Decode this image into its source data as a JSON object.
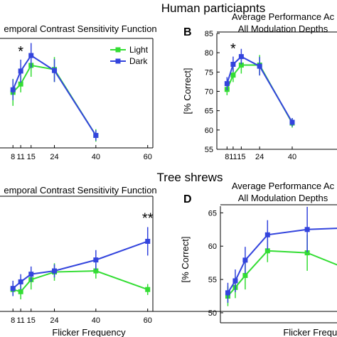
{
  "figure": {
    "row_titles": [
      "Human particiapnts",
      "Tree shrews"
    ],
    "xlabel": "Flicker Frequency"
  },
  "chart_data": [
    {
      "type": "line",
      "panel": "A",
      "panel_label": "",
      "title_lines": [
        "emporal Contrast Sensitivity Function"
      ],
      "ylabel": "",
      "x": [
        8,
        11,
        15,
        24,
        40,
        60
      ],
      "xticks": [
        "8",
        "11",
        "15",
        "24",
        "40",
        "60"
      ],
      "xlim": [
        3,
        62
      ],
      "ylim": [
        0,
        1
      ],
      "yticks": [],
      "show_xlabel": false,
      "legend": "top-right",
      "series": [
        {
          "name": "Light",
          "color": "#33dd33",
          "points": [
            [
              8,
              0.535
            ],
            [
              11,
              0.615
            ],
            [
              15,
              0.795
            ],
            [
              24,
              0.755
            ],
            [
              40,
              0.12
            ]
          ],
          "errors": [
            0.13,
            0.08,
            0.11,
            0.12,
            0.06
          ]
        },
        {
          "name": "Dark",
          "color": "#3344dd",
          "points": [
            [
              8,
              0.56
            ],
            [
              11,
              0.74
            ],
            [
              15,
              0.89
            ],
            [
              24,
              0.745
            ],
            [
              40,
              0.12
            ]
          ],
          "errors": [
            0.1,
            0.11,
            0.12,
            0.11,
            0.05
          ]
        }
      ],
      "annotations": [
        {
          "text": "*",
          "x": 11,
          "y": 0.94
        }
      ]
    },
    {
      "type": "line",
      "panel": "B",
      "panel_label": "B",
      "title_lines": [
        "Average Performance Ac",
        "All Modulation Depths"
      ],
      "ylabel": "[% Correct]",
      "x": [
        8,
        11,
        15,
        24,
        40
      ],
      "xticks": [
        "8",
        "11",
        "15",
        "24",
        "40"
      ],
      "xlim": [
        3,
        62
      ],
      "ylim": [
        55,
        85
      ],
      "yticks": [
        55,
        60,
        65,
        70,
        75,
        80,
        85
      ],
      "show_xlabel": false,
      "legend": "",
      "series": [
        {
          "name": "Light",
          "color": "#33dd33",
          "points": [
            [
              8,
              70.5
            ],
            [
              11,
              74.2
            ],
            [
              15,
              76.8
            ],
            [
              24,
              76.8
            ],
            [
              40,
              61.8
            ]
          ],
          "errors": [
            1.5,
            1.8,
            2.2,
            2.6,
            1.2
          ]
        },
        {
          "name": "Dark",
          "color": "#3344dd",
          "points": [
            [
              8,
              72.0
            ],
            [
              11,
              77.0
            ],
            [
              15,
              79.0
            ],
            [
              24,
              76.5
            ],
            [
              40,
              62.0
            ]
          ],
          "errors": [
            1.7,
            2.0,
            2.0,
            2.4,
            1.1
          ]
        }
      ],
      "annotations": [
        {
          "text": "*",
          "x": 11,
          "y": 81.3
        }
      ]
    },
    {
      "type": "line",
      "panel": "C",
      "panel_label": "",
      "title_lines": [
        "emporal Contrast Sensitivity Function"
      ],
      "ylabel": "",
      "x": [
        8,
        11,
        15,
        24,
        40,
        60
      ],
      "xticks": [
        "8",
        "11",
        "15",
        "24",
        "40",
        "60"
      ],
      "xlim": [
        3,
        62
      ],
      "ylim": [
        0,
        1
      ],
      "yticks": [],
      "show_xlabel": true,
      "legend": "",
      "series": [
        {
          "name": "Light",
          "color": "#33dd33",
          "points": [
            [
              8,
              0.2
            ],
            [
              11,
              0.18
            ],
            [
              15,
              0.29
            ],
            [
              24,
              0.36
            ],
            [
              40,
              0.37
            ],
            [
              60,
              0.2
            ]
          ],
          "errors": [
            0.06,
            0.07,
            0.09,
            0.08,
            0.07,
            0.05
          ]
        },
        {
          "name": "Dark",
          "color": "#3344dd",
          "points": [
            [
              8,
              0.21
            ],
            [
              11,
              0.27
            ],
            [
              15,
              0.34
            ],
            [
              24,
              0.37
            ],
            [
              40,
              0.47
            ],
            [
              60,
              0.64
            ]
          ],
          "errors": [
            0.07,
            0.07,
            0.07,
            0.06,
            0.09,
            0.13
          ]
        }
      ],
      "annotations": [
        {
          "text": "**",
          "x": 60,
          "y": 0.86
        }
      ]
    },
    {
      "type": "line",
      "panel": "D",
      "panel_label": "D",
      "title_lines": [
        "Average Performance Ac",
        "All Modulation Depths"
      ],
      "ylabel": "[% Correct]",
      "x": [
        8,
        11,
        15,
        24,
        40,
        60
      ],
      "xticks": [],
      "xlim": [
        5,
        52
      ],
      "ylim": [
        48.5,
        66
      ],
      "yticks": [
        50,
        55,
        60,
        65
      ],
      "show_xlabel": true,
      "legend": "",
      "series": [
        {
          "name": "Light",
          "color": "#33dd33",
          "points": [
            [
              8,
              52.5
            ],
            [
              11,
              53.8
            ],
            [
              15,
              55.6
            ],
            [
              24,
              59.3
            ],
            [
              40,
              59.0
            ],
            [
              60,
              56.0
            ]
          ],
          "errors": [
            1.5,
            1.6,
            2.1,
            1.7,
            2.7,
            2.0
          ]
        },
        {
          "name": "Dark",
          "color": "#3344dd",
          "points": [
            [
              8,
              53.0
            ],
            [
              11,
              54.8
            ],
            [
              15,
              57.9
            ],
            [
              24,
              61.7
            ],
            [
              40,
              62.5
            ],
            [
              60,
              62.8
            ]
          ],
          "errors": [
            1.5,
            1.7,
            2.0,
            2.2,
            3.4,
            2.2
          ]
        }
      ],
      "annotations": []
    }
  ]
}
